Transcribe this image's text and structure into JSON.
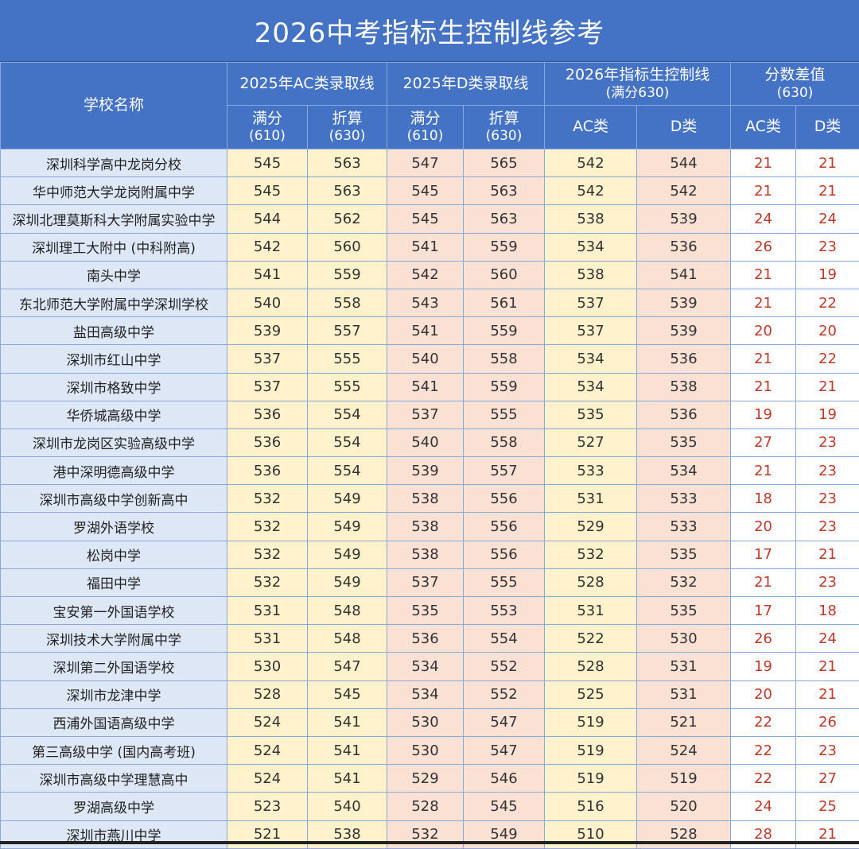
{
  "title": "2026中考指标生控制线参考",
  "headers": {
    "school": "学校名称",
    "ac2025": "2025年AC类录取线",
    "d2025": "2025年D类录取线",
    "ctl2026_line1": "2026年指标生控制线",
    "ctl2026_line2": "(满分630)",
    "diff_line1": "分数差值",
    "diff_line2": "(630)",
    "full": "满分",
    "full_sub": "(610)",
    "conv": "折算",
    "conv_sub": "(630)",
    "ac": "AC类",
    "d": "D类"
  },
  "rows": [
    [
      "深圳科学高中龙岗分校",
      "545",
      "563",
      "547",
      "565",
      "542",
      "544",
      "21",
      "21"
    ],
    [
      "华中师范大学龙岗附属中学",
      "545",
      "563",
      "545",
      "563",
      "542",
      "542",
      "21",
      "21"
    ],
    [
      "深圳北理莫斯科大学附属实验中学",
      "544",
      "562",
      "545",
      "563",
      "538",
      "539",
      "24",
      "24"
    ],
    [
      "深圳理工大附中 (中科附高)",
      "542",
      "560",
      "541",
      "559",
      "534",
      "536",
      "26",
      "23"
    ],
    [
      "南头中学",
      "541",
      "559",
      "542",
      "560",
      "538",
      "541",
      "21",
      "19"
    ],
    [
      "东北师范大学附属中学深圳学校",
      "540",
      "558",
      "543",
      "561",
      "537",
      "539",
      "21",
      "22"
    ],
    [
      "盐田高级中学",
      "539",
      "557",
      "541",
      "559",
      "537",
      "539",
      "20",
      "20"
    ],
    [
      "深圳市红山中学",
      "537",
      "555",
      "540",
      "558",
      "534",
      "536",
      "21",
      "22"
    ],
    [
      "深圳市格致中学",
      "537",
      "555",
      "541",
      "559",
      "534",
      "538",
      "21",
      "21"
    ],
    [
      "华侨城高级中学",
      "536",
      "554",
      "537",
      "555",
      "535",
      "536",
      "19",
      "19"
    ],
    [
      "深圳市龙岗区实验高级中学",
      "536",
      "554",
      "540",
      "558",
      "527",
      "535",
      "27",
      "23"
    ],
    [
      "港中深明德高级中学",
      "536",
      "554",
      "539",
      "557",
      "533",
      "534",
      "21",
      "23"
    ],
    [
      "深圳市高级中学创新高中",
      "532",
      "549",
      "538",
      "556",
      "531",
      "533",
      "18",
      "23"
    ],
    [
      "罗湖外语学校",
      "532",
      "549",
      "538",
      "556",
      "529",
      "533",
      "20",
      "23"
    ],
    [
      "松岗中学",
      "532",
      "549",
      "538",
      "556",
      "532",
      "535",
      "17",
      "21"
    ],
    [
      "福田中学",
      "532",
      "549",
      "537",
      "555",
      "528",
      "532",
      "21",
      "23"
    ],
    [
      "宝安第一外国语学校",
      "531",
      "548",
      "535",
      "553",
      "531",
      "535",
      "17",
      "18"
    ],
    [
      "深圳技术大学附属中学",
      "531",
      "548",
      "536",
      "554",
      "522",
      "530",
      "26",
      "24"
    ],
    [
      "深圳第二外国语学校",
      "530",
      "547",
      "534",
      "552",
      "528",
      "531",
      "19",
      "21"
    ],
    [
      "深圳市龙津中学",
      "528",
      "545",
      "534",
      "552",
      "525",
      "531",
      "20",
      "21"
    ],
    [
      "西浦外国语高级中学",
      "524",
      "541",
      "530",
      "547",
      "519",
      "521",
      "22",
      "26"
    ],
    [
      "第三高级中学 (国内高考班)",
      "524",
      "541",
      "530",
      "547",
      "519",
      "524",
      "22",
      "23"
    ],
    [
      "深圳市高级中学理慧高中",
      "524",
      "541",
      "529",
      "546",
      "519",
      "519",
      "22",
      "27"
    ],
    [
      "罗湖高级中学",
      "523",
      "540",
      "528",
      "545",
      "516",
      "520",
      "24",
      "25"
    ],
    [
      "深圳市燕川中学",
      "521",
      "538",
      "532",
      "549",
      "510",
      "528",
      "28",
      "21"
    ]
  ]
}
